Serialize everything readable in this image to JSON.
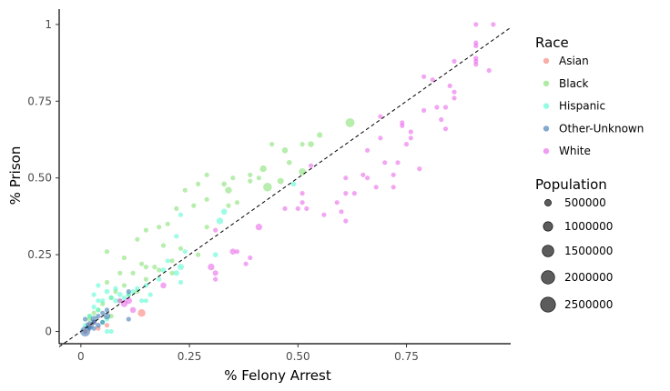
{
  "chart_data": {
    "type": "scatter",
    "xlabel": "% Felony Arrest",
    "ylabel": "% Prison",
    "xlim": [
      -0.05,
      0.99
    ],
    "ylim": [
      -0.04,
      1.05
    ],
    "x_ticks": [
      0,
      0.25,
      0.5,
      0.75
    ],
    "x_tick_labels": [
      "0",
      "0.25",
      "0.50",
      "0.75"
    ],
    "y_ticks": [
      0,
      0.25,
      0.5,
      0.75,
      1
    ],
    "y_tick_labels": [
      "0",
      "0.25",
      "0.50",
      "0.75",
      "1"
    ],
    "grid": false,
    "reference_line": {
      "style": "dashed",
      "x": [
        -0.05,
        0.99
      ],
      "y": [
        -0.05,
        0.99
      ]
    },
    "legend_placement": "right",
    "color_legend": {
      "title": "Race",
      "entries": [
        {
          "name": "Asian",
          "color": "#f8766d"
        },
        {
          "name": "Black",
          "color": "#7cde6a"
        },
        {
          "name": "Hispanic",
          "color": "#4dfad0"
        },
        {
          "name": "Other-Unknown",
          "color": "#2f6fae"
        },
        {
          "name": "White",
          "color": "#e85ce8"
        }
      ]
    },
    "size_legend": {
      "title": "Population",
      "entries": [
        {
          "label": "500000",
          "value": 500000
        },
        {
          "label": "1000000",
          "value": 1000000
        },
        {
          "label": "1500000",
          "value": 1500000
        },
        {
          "label": "2000000",
          "value": 2000000
        },
        {
          "label": "2500000",
          "value": 2500000
        }
      ]
    },
    "series": [
      {
        "name": "Asian",
        "color": "#f8766d",
        "points": [
          [
            0.14,
            0.06,
            650000
          ],
          [
            0.04,
            0.01,
            250000
          ],
          [
            0.02,
            0.02,
            150000
          ],
          [
            0.01,
            0.0,
            100000
          ],
          [
            0.03,
            0.03,
            100000
          ],
          [
            0.06,
            0.02,
            80000
          ]
        ]
      },
      {
        "name": "Black",
        "color": "#7cde6a",
        "points": [
          [
            0.62,
            0.68,
            900000
          ],
          [
            0.43,
            0.47,
            850000
          ],
          [
            0.55,
            0.64,
            350000
          ],
          [
            0.47,
            0.59,
            400000
          ],
          [
            0.53,
            0.61,
            400000
          ],
          [
            0.51,
            0.52,
            550000
          ],
          [
            0.42,
            0.53,
            500000
          ],
          [
            0.48,
            0.55,
            300000
          ],
          [
            0.46,
            0.49,
            450000
          ],
          [
            0.34,
            0.46,
            500000
          ],
          [
            0.33,
            0.48,
            300000
          ],
          [
            0.35,
            0.5,
            250000
          ],
          [
            0.44,
            0.61,
            200000
          ],
          [
            0.51,
            0.61,
            200000
          ],
          [
            0.39,
            0.51,
            200000
          ],
          [
            0.39,
            0.49,
            150000
          ],
          [
            0.41,
            0.5,
            250000
          ],
          [
            0.36,
            0.42,
            200000
          ],
          [
            0.29,
            0.51,
            120000
          ],
          [
            0.27,
            0.48,
            120000
          ],
          [
            0.24,
            0.46,
            120000
          ],
          [
            0.22,
            0.4,
            150000
          ],
          [
            0.29,
            0.43,
            120000
          ],
          [
            0.26,
            0.41,
            120000
          ],
          [
            0.2,
            0.35,
            100000
          ],
          [
            0.18,
            0.34,
            100000
          ],
          [
            0.15,
            0.33,
            100000
          ],
          [
            0.13,
            0.3,
            100000
          ],
          [
            0.19,
            0.28,
            100000
          ],
          [
            0.14,
            0.22,
            120000
          ],
          [
            0.15,
            0.21,
            150000
          ],
          [
            0.17,
            0.21,
            120000
          ],
          [
            0.21,
            0.23,
            150000
          ],
          [
            0.23,
            0.27,
            100000
          ],
          [
            0.1,
            0.24,
            100000
          ],
          [
            0.09,
            0.19,
            100000
          ],
          [
            0.06,
            0.26,
            80000
          ],
          [
            0.12,
            0.19,
            100000
          ],
          [
            0.29,
            0.34,
            100000
          ],
          [
            0.34,
            0.41,
            100000
          ],
          [
            0.27,
            0.25,
            100000
          ],
          [
            0.21,
            0.19,
            150000
          ],
          [
            0.15,
            0.17,
            120000
          ],
          [
            0.1,
            0.15,
            120000
          ],
          [
            0.08,
            0.13,
            150000
          ],
          [
            0.07,
            0.11,
            200000
          ],
          [
            0.05,
            0.09,
            150000
          ],
          [
            0.04,
            0.07,
            150000
          ],
          [
            0.11,
            0.12,
            150000
          ],
          [
            0.13,
            0.13,
            150000
          ],
          [
            0.09,
            0.1,
            100000
          ],
          [
            0.06,
            0.16,
            100000
          ],
          [
            0.03,
            0.06,
            100000
          ],
          [
            0.02,
            0.04,
            100000
          ],
          [
            0.02,
            0.05,
            100000
          ],
          [
            0.07,
            0.05,
            100000
          ],
          [
            0.18,
            0.2,
            150000
          ]
        ]
      },
      {
        "name": "Hispanic",
        "color": "#4dfad0",
        "points": [
          [
            0.33,
            0.39,
            400000
          ],
          [
            0.32,
            0.36,
            500000
          ],
          [
            0.23,
            0.21,
            450000
          ],
          [
            0.22,
            0.19,
            350000
          ],
          [
            0.19,
            0.2,
            300000
          ],
          [
            0.31,
            0.25,
            300000
          ],
          [
            0.49,
            0.48,
            300000
          ],
          [
            0.24,
            0.26,
            250000
          ],
          [
            0.22,
            0.31,
            150000
          ],
          [
            0.23,
            0.38,
            120000
          ],
          [
            0.23,
            0.16,
            200000
          ],
          [
            0.15,
            0.15,
            200000
          ],
          [
            0.13,
            0.14,
            250000
          ],
          [
            0.12,
            0.13,
            250000
          ],
          [
            0.11,
            0.12,
            200000
          ],
          [
            0.09,
            0.12,
            300000
          ],
          [
            0.08,
            0.1,
            300000
          ],
          [
            0.07,
            0.11,
            250000
          ],
          [
            0.06,
            0.13,
            300000
          ],
          [
            0.05,
            0.1,
            250000
          ],
          [
            0.04,
            0.1,
            200000
          ],
          [
            0.04,
            0.07,
            200000
          ],
          [
            0.03,
            0.08,
            150000
          ],
          [
            0.03,
            0.12,
            150000
          ],
          [
            0.02,
            0.05,
            150000
          ],
          [
            0.05,
            0.03,
            150000
          ],
          [
            0.06,
            0.04,
            150000
          ],
          [
            0.06,
            0.0,
            120000
          ],
          [
            0.07,
            0.0,
            100000
          ],
          [
            0.1,
            0.11,
            200000
          ],
          [
            0.14,
            0.1,
            150000
          ],
          [
            0.15,
            0.1,
            150000
          ],
          [
            0.16,
            0.12,
            150000
          ],
          [
            0.01,
            0.02,
            150000
          ],
          [
            0.04,
            0.15,
            150000
          ],
          [
            0.08,
            0.14,
            200000
          ],
          [
            0.18,
            0.17,
            150000
          ],
          [
            0.2,
            0.23,
            150000
          ]
        ]
      },
      {
        "name": "Other-Unknown",
        "color": "#2f6fae",
        "points": [
          [
            0.01,
            0.0,
            1100000
          ],
          [
            0.02,
            0.02,
            700000
          ],
          [
            0.03,
            0.04,
            500000
          ],
          [
            0.04,
            0.02,
            300000
          ],
          [
            0.06,
            0.05,
            500000
          ],
          [
            0.05,
            0.03,
            250000
          ],
          [
            0.03,
            0.03,
            300000
          ],
          [
            0.11,
            0.04,
            120000
          ],
          [
            0.11,
            0.13,
            120000
          ],
          [
            0.02,
            0.01,
            200000
          ],
          [
            0.04,
            0.05,
            200000
          ],
          [
            0.05,
            0.06,
            120000
          ],
          [
            0.06,
            0.07,
            100000
          ],
          [
            0.01,
            0.04,
            150000
          ],
          [
            0.03,
            0.01,
            200000
          ]
        ]
      },
      {
        "name": "White",
        "color": "#e85ce8",
        "points": [
          [
            0.41,
            0.34,
            500000
          ],
          [
            0.3,
            0.21,
            500000
          ],
          [
            0.35,
            0.26,
            400000
          ],
          [
            0.31,
            0.19,
            350000
          ],
          [
            0.19,
            0.15,
            400000
          ],
          [
            0.11,
            0.1,
            500000
          ],
          [
            0.1,
            0.09,
            500000
          ],
          [
            0.12,
            0.07,
            400000
          ],
          [
            0.09,
            0.1,
            300000
          ],
          [
            0.31,
            0.17,
            250000
          ],
          [
            0.31,
            0.33,
            250000
          ],
          [
            0.36,
            0.26,
            250000
          ],
          [
            0.39,
            0.24,
            250000
          ],
          [
            0.38,
            0.22,
            200000
          ],
          [
            0.5,
            0.4,
            200000
          ],
          [
            0.51,
            0.42,
            200000
          ],
          [
            0.51,
            0.45,
            150000
          ],
          [
            0.52,
            0.4,
            150000
          ],
          [
            0.53,
            0.54,
            150000
          ],
          [
            0.56,
            0.38,
            150000
          ],
          [
            0.59,
            0.42,
            150000
          ],
          [
            0.6,
            0.39,
            120000
          ],
          [
            0.61,
            0.36,
            120000
          ],
          [
            0.61,
            0.45,
            120000
          ],
          [
            0.61,
            0.5,
            120000
          ],
          [
            0.63,
            0.45,
            120000
          ],
          [
            0.65,
            0.51,
            120000
          ],
          [
            0.66,
            0.59,
            120000
          ],
          [
            0.66,
            0.5,
            120000
          ],
          [
            0.68,
            0.47,
            120000
          ],
          [
            0.69,
            0.63,
            120000
          ],
          [
            0.69,
            0.7,
            120000
          ],
          [
            0.7,
            0.55,
            120000
          ],
          [
            0.72,
            0.47,
            120000
          ],
          [
            0.72,
            0.51,
            120000
          ],
          [
            0.73,
            0.55,
            120000
          ],
          [
            0.74,
            0.67,
            120000
          ],
          [
            0.74,
            0.68,
            120000
          ],
          [
            0.75,
            0.61,
            120000
          ],
          [
            0.76,
            0.63,
            120000
          ],
          [
            0.76,
            0.65,
            120000
          ],
          [
            0.78,
            0.53,
            120000
          ],
          [
            0.79,
            0.72,
            120000
          ],
          [
            0.79,
            0.83,
            150000
          ],
          [
            0.81,
            0.82,
            120000
          ],
          [
            0.82,
            0.73,
            120000
          ],
          [
            0.83,
            0.69,
            120000
          ],
          [
            0.84,
            0.66,
            120000
          ],
          [
            0.84,
            0.73,
            120000
          ],
          [
            0.85,
            0.8,
            120000
          ],
          [
            0.86,
            0.76,
            120000
          ],
          [
            0.86,
            0.78,
            120000
          ],
          [
            0.86,
            0.88,
            150000
          ],
          [
            0.91,
            0.88,
            150000
          ],
          [
            0.91,
            0.87,
            120000
          ],
          [
            0.91,
            0.89,
            120000
          ],
          [
            0.91,
            0.93,
            120000
          ],
          [
            0.91,
            0.94,
            120000
          ],
          [
            0.91,
            1.0,
            120000
          ],
          [
            0.94,
            0.85,
            120000
          ],
          [
            0.95,
            1.0,
            80000
          ],
          [
            0.47,
            0.4,
            120000
          ]
        ]
      }
    ]
  }
}
